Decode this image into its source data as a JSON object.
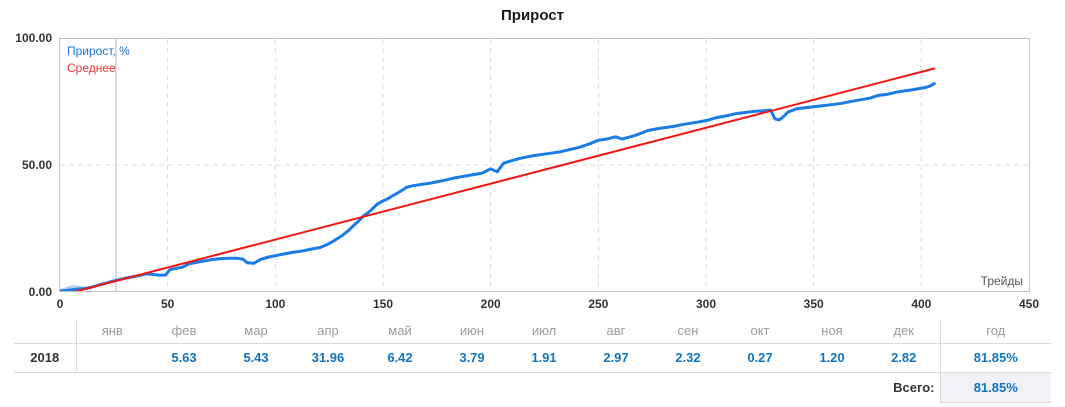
{
  "title": "Прирост",
  "chart_data": {
    "type": "line",
    "title": "Прирост",
    "x_label": "Трейды",
    "x_range": [
      0,
      450
    ],
    "y_range": [
      0,
      100
    ],
    "x_ticks": [
      0,
      50,
      100,
      150,
      200,
      250,
      300,
      350,
      400,
      450
    ],
    "y_ticks": [
      0,
      50,
      100
    ],
    "y_tick_labels": [
      "0.00",
      "50.00",
      "100.00"
    ],
    "grid": {
      "h_dashed_values": [
        50
      ],
      "v_dashed_trades": [
        50,
        100,
        150,
        200,
        250,
        300,
        350,
        400
      ],
      "v_solid_trades": [
        26
      ]
    },
    "legend_position": "top-left",
    "series": [
      {
        "name": "Прирост, %",
        "color": "#1b7ce6",
        "width": 3,
        "points": [
          [
            0,
            0
          ],
          [
            3,
            0.2
          ],
          [
            6,
            0.5
          ],
          [
            9,
            0.8
          ],
          [
            12,
            1.0
          ],
          [
            15,
            1.6
          ],
          [
            18,
            2.4
          ],
          [
            21,
            3.0
          ],
          [
            24,
            3.8
          ],
          [
            26,
            4.2
          ],
          [
            28,
            4.6
          ],
          [
            30,
            5.0
          ],
          [
            33,
            5.5
          ],
          [
            36,
            6.0
          ],
          [
            40,
            6.8
          ],
          [
            43,
            6.6
          ],
          [
            46,
            6.3
          ],
          [
            49,
            6.3
          ],
          [
            51,
            8.4
          ],
          [
            54,
            9.0
          ],
          [
            57,
            9.5
          ],
          [
            60,
            10.8
          ],
          [
            63,
            11.3
          ],
          [
            66,
            11.8
          ],
          [
            70,
            12.4
          ],
          [
            74,
            12.8
          ],
          [
            78,
            13.0
          ],
          [
            82,
            13.0
          ],
          [
            85,
            12.6
          ],
          [
            87,
            11.2
          ],
          [
            90,
            11.0
          ],
          [
            93,
            12.5
          ],
          [
            97,
            13.5
          ],
          [
            100,
            14.0
          ],
          [
            104,
            14.7
          ],
          [
            108,
            15.3
          ],
          [
            112,
            15.8
          ],
          [
            116,
            16.5
          ],
          [
            121,
            17.3
          ],
          [
            125,
            18.8
          ],
          [
            128,
            20.3
          ],
          [
            131,
            22.0
          ],
          [
            134,
            24.0
          ],
          [
            137,
            26.5
          ],
          [
            139,
            28.0
          ],
          [
            141,
            29.8
          ],
          [
            143,
            31.0
          ],
          [
            145,
            32.5
          ],
          [
            147,
            34.2
          ],
          [
            149,
            35.3
          ],
          [
            152,
            36.5
          ],
          [
            155,
            38.0
          ],
          [
            158,
            39.5
          ],
          [
            161,
            41.2
          ],
          [
            164,
            41.8
          ],
          [
            168,
            42.3
          ],
          [
            172,
            42.8
          ],
          [
            176,
            43.5
          ],
          [
            180,
            44.2
          ],
          [
            184,
            45.0
          ],
          [
            188,
            45.6
          ],
          [
            192,
            46.2
          ],
          [
            196,
            46.8
          ],
          [
            200,
            48.5
          ],
          [
            203,
            47.3
          ],
          [
            206,
            50.7
          ],
          [
            210,
            51.8
          ],
          [
            214,
            52.7
          ],
          [
            218,
            53.4
          ],
          [
            223,
            54.1
          ],
          [
            228,
            54.7
          ],
          [
            232,
            55.2
          ],
          [
            237,
            56.2
          ],
          [
            241,
            57.0
          ],
          [
            246,
            58.4
          ],
          [
            250,
            59.8
          ],
          [
            254,
            60.3
          ],
          [
            258,
            61.2
          ],
          [
            261,
            60.3
          ],
          [
            265,
            61.2
          ],
          [
            269,
            62.3
          ],
          [
            273,
            63.7
          ],
          [
            278,
            64.5
          ],
          [
            285,
            65.3
          ],
          [
            290,
            66.2
          ],
          [
            296,
            67.0
          ],
          [
            301,
            67.8
          ],
          [
            305,
            68.8
          ],
          [
            310,
            69.6
          ],
          [
            314,
            70.4
          ],
          [
            319,
            70.9
          ],
          [
            323,
            71.3
          ],
          [
            327,
            71.5
          ],
          [
            330,
            71.8
          ],
          [
            332,
            68.3
          ],
          [
            334,
            67.9
          ],
          [
            336,
            69.2
          ],
          [
            338,
            71.0
          ],
          [
            342,
            72.3
          ],
          [
            347,
            72.8
          ],
          [
            352,
            73.3
          ],
          [
            358,
            73.9
          ],
          [
            363,
            74.5
          ],
          [
            368,
            75.3
          ],
          [
            372,
            75.9
          ],
          [
            376,
            76.5
          ],
          [
            380,
            77.6
          ],
          [
            384,
            78.0
          ],
          [
            389,
            79.0
          ],
          [
            394,
            79.6
          ],
          [
            399,
            80.3
          ],
          [
            402,
            80.8
          ],
          [
            404,
            81.3
          ],
          [
            406,
            82.3
          ]
        ]
      },
      {
        "name": "Среднее",
        "color": "#f01810",
        "width": 2,
        "points": [
          [
            8,
            0
          ],
          [
            406,
            88.3
          ]
        ]
      },
      {
        "name": "начало-светлая",
        "color": "#b9cfe8",
        "width": 3,
        "points": [
          [
            0,
            0.1
          ],
          [
            3,
            1.0
          ],
          [
            6,
            1.7
          ],
          [
            9,
            1.5
          ],
          [
            12,
            1.1
          ],
          [
            15,
            1.6
          ],
          [
            18,
            2.3
          ],
          [
            22,
            3.2
          ],
          [
            26,
            4.2
          ]
        ]
      }
    ]
  },
  "table": {
    "columns": [
      "",
      "янв",
      "фев",
      "мар",
      "апр",
      "май",
      "июн",
      "июл",
      "авг",
      "сен",
      "окт",
      "ноя",
      "дек",
      "год"
    ],
    "rows": [
      {
        "year": "2018",
        "values": [
          "",
          "5.63",
          "5.43",
          "31.96",
          "6.42",
          "3.79",
          "1.91",
          "2.97",
          "2.32",
          "0.27",
          "1.20",
          "2.82"
        ],
        "total": "81.85%"
      }
    ],
    "footer": {
      "label": "Всего:",
      "value": "81.85%"
    }
  },
  "colors": {
    "growth_line": "#1b7ce6",
    "average_line": "#f01810",
    "light_line": "#b9cfe8",
    "table_value_blue": "#1274c2",
    "grid": "#d9d9d9",
    "footer_cell_bg": "#f0f2f7"
  }
}
